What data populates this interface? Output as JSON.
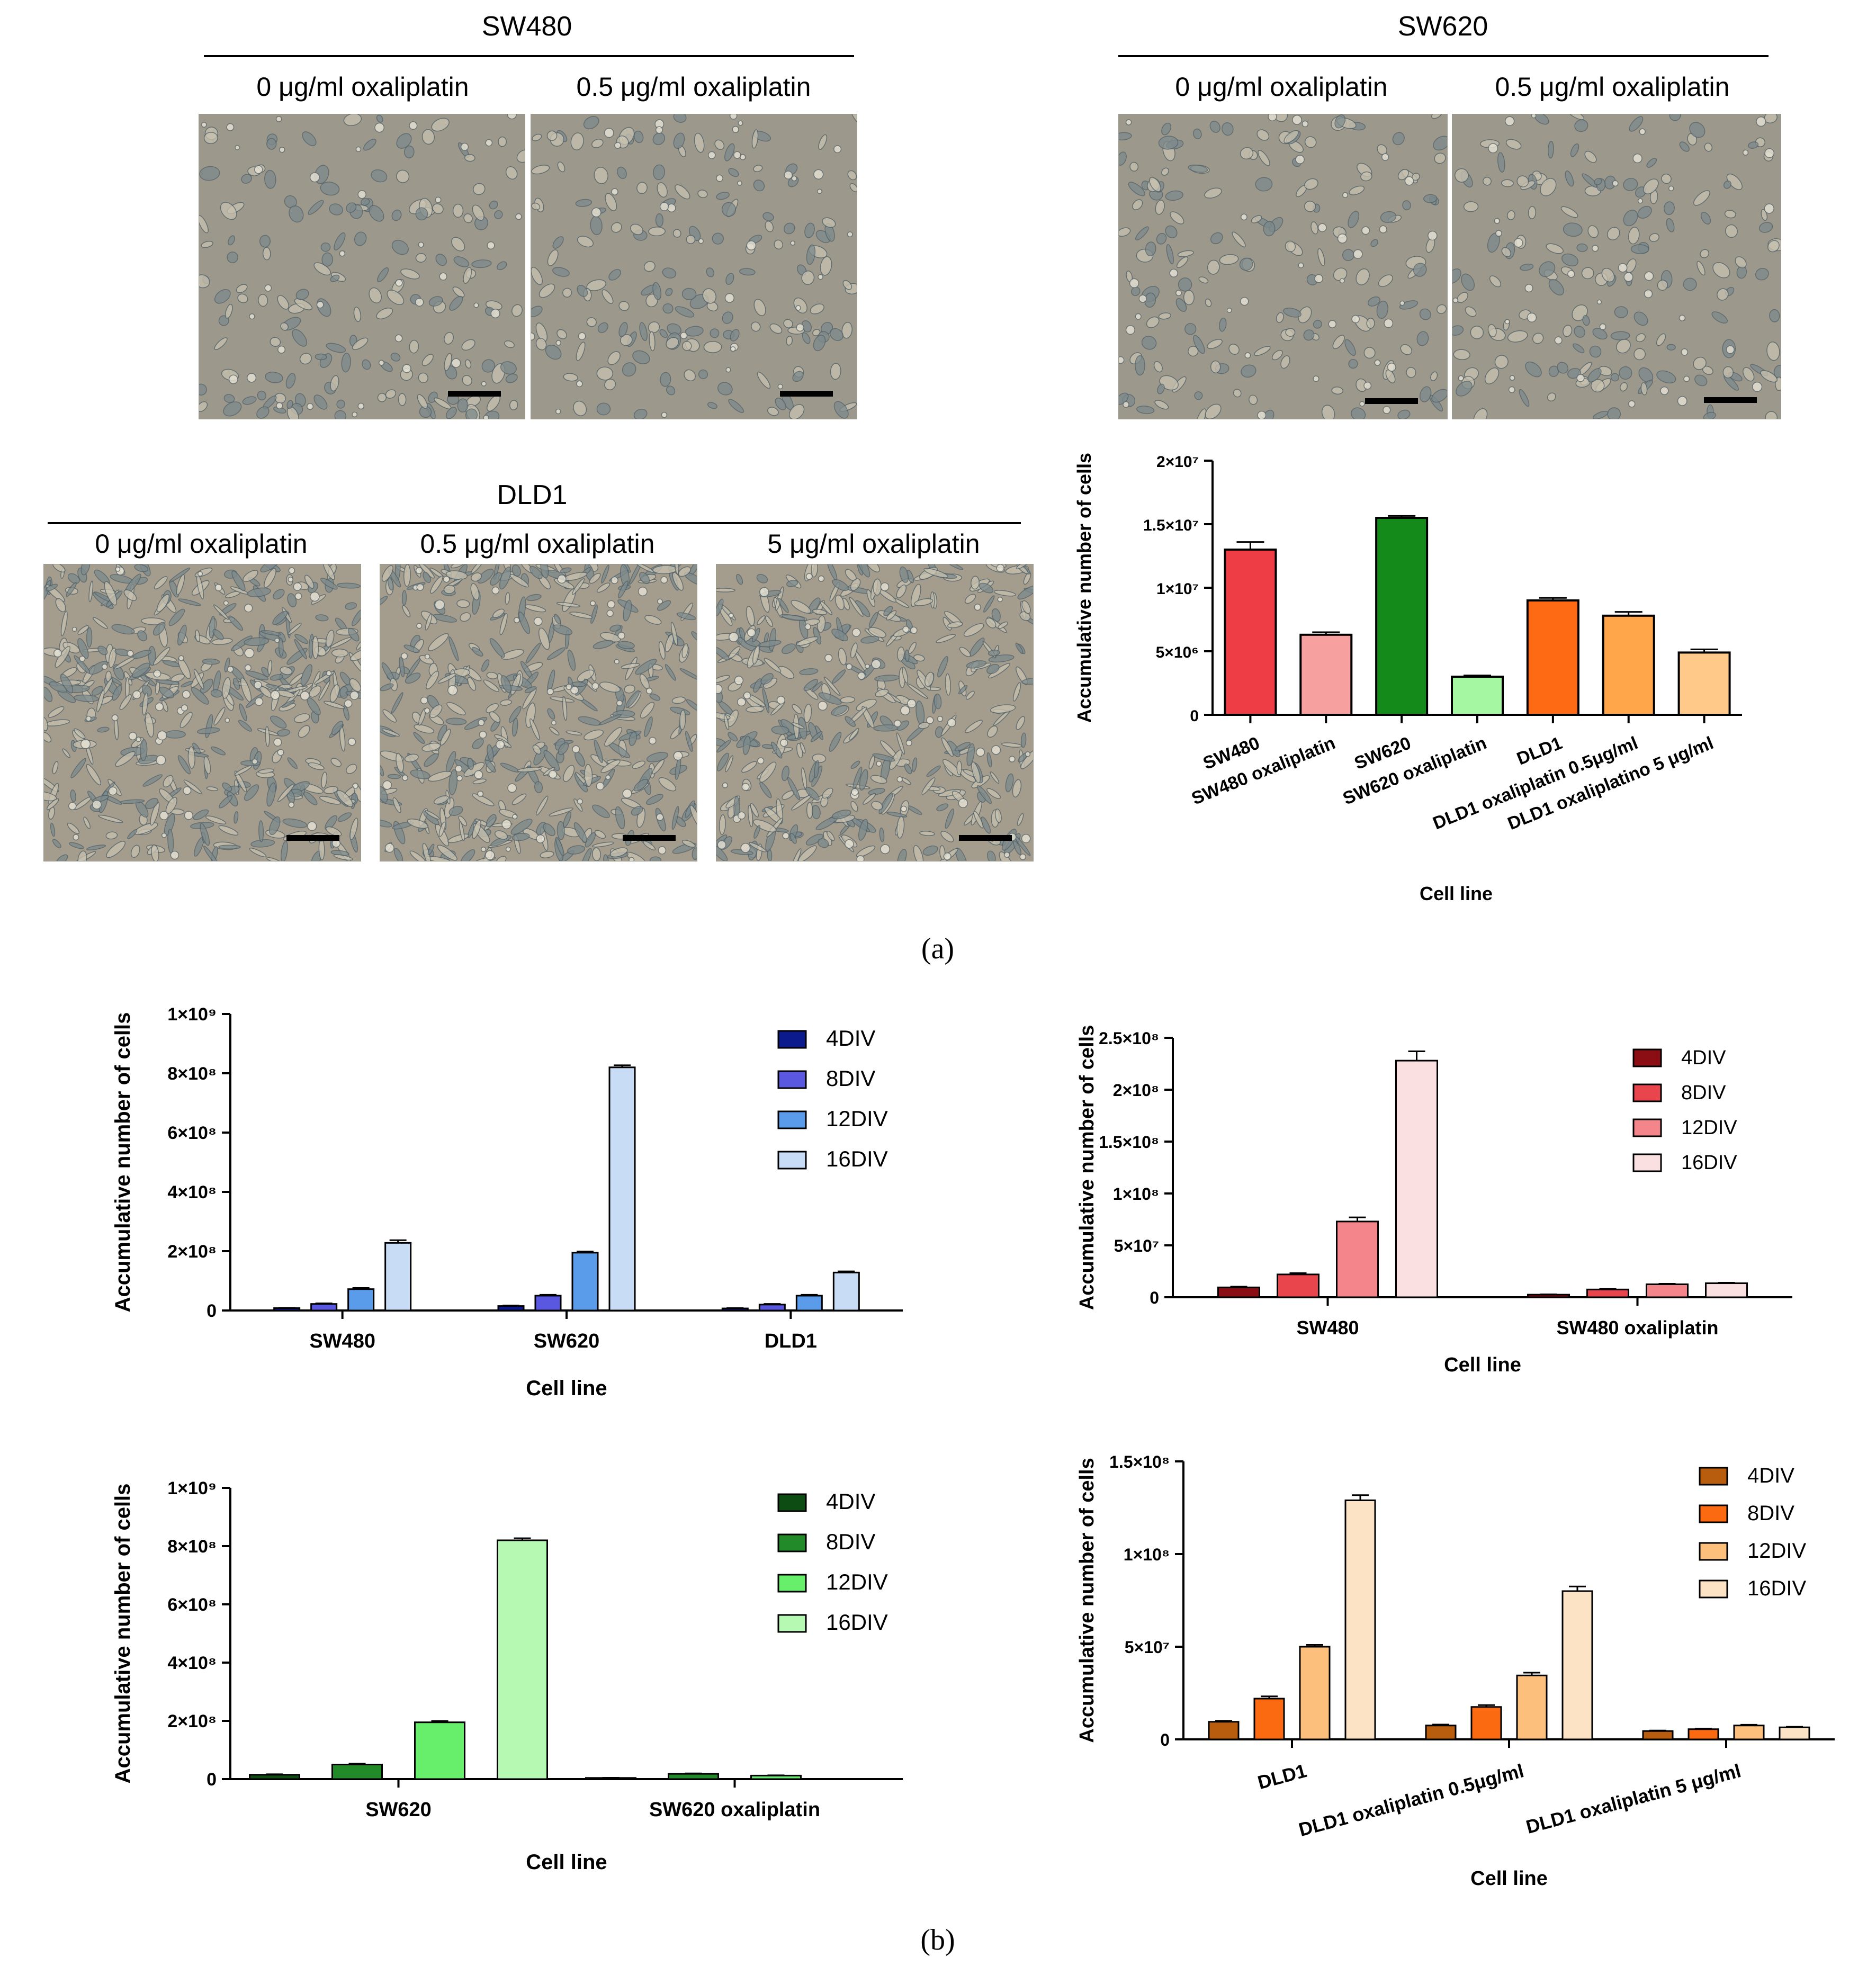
{
  "panels": {
    "a_label": "(a)",
    "b_label": "(b)",
    "micrographs": [
      {
        "title": "SW480",
        "conditions": [
          "0 μg/ml oxaliplatin",
          "0.5 μg/ml oxaliplatin"
        ]
      },
      {
        "title": "SW620",
        "conditions": [
          "0 μg/ml oxaliplatin",
          "0.5 μg/ml oxaliplatin"
        ]
      },
      {
        "title": "DLD1",
        "conditions": [
          "0 μg/ml oxaliplatin",
          "0.5 μg/ml oxaliplatin",
          "5 μg/ml oxaliplatin"
        ]
      }
    ]
  },
  "chart_data": [
    {
      "id": "a-total",
      "type": "bar",
      "xlabel": "Cell line",
      "ylabel": "Accumulative number of cells",
      "ylim": [
        0,
        20000000
      ],
      "yticks": [
        {
          "v": 0,
          "label": "0"
        },
        {
          "v": 5000000,
          "label": "5×10⁶"
        },
        {
          "v": 10000000,
          "label": "1×10⁷"
        },
        {
          "v": 15000000,
          "label": "1.5×10⁷"
        },
        {
          "v": 20000000,
          "label": "2×10⁷"
        }
      ],
      "categories": [
        "SW480",
        "SW480 oxaliplatin",
        "SW620",
        "SW620 oxaliplatin",
        "DLD1",
        "DLD1 oxaliplatin 0.5μg/ml",
        "DLD1 oxaliplatino 5 μg/ml"
      ],
      "values": [
        13000000,
        6300000,
        15500000,
        3000000,
        9000000,
        7800000,
        4900000
      ],
      "errors": [
        600000,
        200000,
        150000,
        100000,
        200000,
        300000,
        250000
      ],
      "colors": [
        "#ef3d45",
        "#f7a0a0",
        "#138a1a",
        "#a6f7a2",
        "#fe6a14",
        "#ffa54a",
        "#ffc98a"
      ],
      "grid": false
    },
    {
      "id": "b-all",
      "type": "bar",
      "xlabel": "Cell line",
      "ylabel": "Accumulative number of cells",
      "ylim": [
        0,
        1000000000
      ],
      "yticks": [
        {
          "v": 0,
          "label": "0"
        },
        {
          "v": 200000000,
          "label": "2×10⁸"
        },
        {
          "v": 400000000,
          "label": "4×10⁸"
        },
        {
          "v": 600000000,
          "label": "6×10⁸"
        },
        {
          "v": 800000000,
          "label": "8×10⁸"
        },
        {
          "v": 1000000000,
          "label": "1×10⁹"
        }
      ],
      "categories": [
        "SW480",
        "SW620",
        "DLD1"
      ],
      "series": [
        {
          "name": "4DIV",
          "color": "#0b1a8c",
          "values": [
            8000000,
            15000000,
            7000000
          ],
          "errors": [
            1000000,
            2000000,
            1000000
          ]
        },
        {
          "name": "8DIV",
          "color": "#5a57e0",
          "values": [
            22000000,
            50000000,
            20000000
          ],
          "errors": [
            2000000,
            3000000,
            2000000
          ]
        },
        {
          "name": "12DIV",
          "color": "#5b9cea",
          "values": [
            72000000,
            195000000,
            50000000
          ],
          "errors": [
            4000000,
            4000000,
            3000000
          ]
        },
        {
          "name": "16DIV",
          "color": "#c8dcf5",
          "values": [
            228000000,
            820000000,
            128000000
          ],
          "errors": [
            9000000,
            7000000,
            4000000
          ]
        }
      ],
      "legend": "top-right",
      "grid": false
    },
    {
      "id": "b-sw480",
      "type": "bar",
      "xlabel": "Cell line",
      "ylabel": "Accumulative number of cells",
      "ylim": [
        0,
        250000000
      ],
      "yticks": [
        {
          "v": 0,
          "label": "0"
        },
        {
          "v": 50000000,
          "label": "5×10⁷"
        },
        {
          "v": 100000000,
          "label": "1×10⁸"
        },
        {
          "v": 150000000,
          "label": "1.5×10⁸"
        },
        {
          "v": 200000000,
          "label": "2×10⁸"
        },
        {
          "v": 250000000,
          "label": "2.5×10⁸"
        }
      ],
      "categories": [
        "SW480",
        "SW480 oxaliplatin"
      ],
      "series": [
        {
          "name": "4DIV",
          "color": "#8a0e14",
          "values": [
            9500000,
            2500000
          ],
          "errors": [
            700000,
            300000
          ]
        },
        {
          "name": "8DIV",
          "color": "#e8454c",
          "values": [
            22000000,
            7500000
          ],
          "errors": [
            1200000,
            500000
          ]
        },
        {
          "name": "12DIV",
          "color": "#f4858b",
          "values": [
            73000000,
            12500000
          ],
          "errors": [
            4000000,
            500000
          ]
        },
        {
          "name": "16DIV",
          "color": "#fbe0e2",
          "values": [
            228000000,
            13500000
          ],
          "errors": [
            9000000,
            500000
          ]
        }
      ],
      "legend": "top-right",
      "grid": false
    },
    {
      "id": "b-sw620",
      "type": "bar",
      "xlabel": "Cell line",
      "ylabel": "Accumulative number of cells",
      "ylim": [
        0,
        1000000000
      ],
      "yticks": [
        {
          "v": 0,
          "label": "0"
        },
        {
          "v": 200000000,
          "label": "2×10⁸"
        },
        {
          "v": 400000000,
          "label": "4×10⁸"
        },
        {
          "v": 600000000,
          "label": "6×10⁸"
        },
        {
          "v": 800000000,
          "label": "8×10⁸"
        },
        {
          "v": 1000000000,
          "label": "1×10⁹"
        }
      ],
      "categories": [
        "SW620",
        "SW620 oxaliplatin"
      ],
      "series": [
        {
          "name": "4DIV",
          "color": "#0d4d14",
          "values": [
            15000000,
            4000000
          ],
          "errors": [
            1500000,
            500000
          ]
        },
        {
          "name": "8DIV",
          "color": "#238a2a",
          "values": [
            50000000,
            18000000
          ],
          "errors": [
            3000000,
            1500000
          ]
        },
        {
          "name": "12DIV",
          "color": "#67ef6c",
          "values": [
            195000000,
            12000000
          ],
          "errors": [
            4000000,
            1000000
          ]
        },
        {
          "name": "16DIV",
          "color": "#b5f9b2",
          "values": [
            820000000,
            0
          ],
          "errors": [
            7000000,
            0
          ]
        }
      ],
      "legend": "top-right",
      "grid": false
    },
    {
      "id": "b-dld1",
      "type": "bar",
      "xlabel": "Cell line",
      "ylabel": "Accumulative number of cells",
      "ylim": [
        0,
        150000000
      ],
      "yticks": [
        {
          "v": 0,
          "label": "0"
        },
        {
          "v": 50000000,
          "label": "5×10⁷"
        },
        {
          "v": 100000000,
          "label": "1×10⁸"
        },
        {
          "v": 150000000,
          "label": "1.5×10⁸"
        }
      ],
      "categories": [
        "DLD1",
        "DLD1 oxaliplatin 0.5μg/ml",
        "DLD1 oxaliplatin 5 μg/ml"
      ],
      "series": [
        {
          "name": "4DIV",
          "color": "#b85c0e",
          "values": [
            9500000,
            7500000,
            4500000
          ],
          "errors": [
            500000,
            500000,
            300000
          ]
        },
        {
          "name": "8DIV",
          "color": "#fb6a10",
          "values": [
            22000000,
            17500000,
            5500000
          ],
          "errors": [
            1200000,
            1000000,
            300000
          ]
        },
        {
          "name": "12DIV",
          "color": "#fdc07c",
          "values": [
            50000000,
            34500000,
            7500000
          ],
          "errors": [
            1000000,
            1500000,
            400000
          ]
        },
        {
          "name": "16DIV",
          "color": "#fde3c5",
          "values": [
            129000000,
            80000000,
            6500000
          ],
          "errors": [
            2800000,
            2500000,
            300000
          ]
        }
      ],
      "legend": "top-right",
      "grid": false
    }
  ]
}
